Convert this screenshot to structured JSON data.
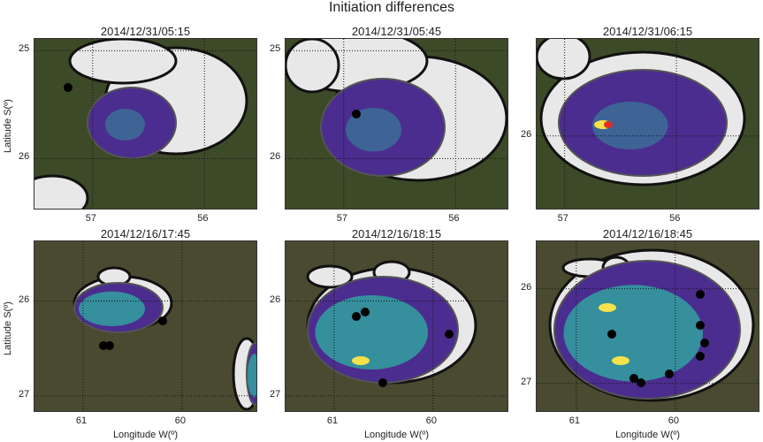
{
  "title": "Initiation differences",
  "x_axis_label": "Longitude W(º)",
  "y_axis_label": "Latitude S(º)",
  "colors": {
    "land": "#3d4a28",
    "cloud": "#e8e8e8",
    "low": "#4b2d8f",
    "mid": "#2fa8a0",
    "high": "#f5e14a",
    "peak": "#e0301e",
    "marker": "#000000"
  },
  "panels": [
    {
      "title": "2014/12/31/05:15",
      "lon_range": [
        57.52,
        55.52
      ],
      "lat_range": [
        24.89,
        26.48
      ],
      "xticks": [
        "57",
        "56"
      ],
      "xtick_values": [
        57,
        56
      ],
      "yticks": [
        "25",
        "26"
      ],
      "ytick_values": [
        25,
        26
      ]
    },
    {
      "title": "2014/12/31/05:45",
      "lon_range": [
        57.52,
        55.52
      ],
      "lat_range": [
        24.89,
        26.48
      ],
      "xticks": [
        "57",
        "56"
      ],
      "xtick_values": [
        57,
        56
      ],
      "yticks": [
        "25",
        "26"
      ],
      "ytick_values": [
        25,
        26
      ]
    },
    {
      "title": "2014/12/31/06:15",
      "lon_range": [
        57.25,
        55.25
      ],
      "lat_range": [
        25.1,
        26.69
      ],
      "xticks": [
        "57",
        "56"
      ],
      "xtick_values": [
        57,
        56
      ],
      "yticks": [
        "26"
      ],
      "ytick_values": [
        26
      ]
    },
    {
      "title": "2014/12/16/17:45",
      "lon_range": [
        61.49,
        59.23
      ],
      "lat_range": [
        25.37,
        27.18
      ],
      "xticks": [
        "61",
        "60"
      ],
      "xtick_values": [
        61,
        60
      ],
      "yticks": [
        "26",
        "27"
      ],
      "ytick_values": [
        26,
        27
      ]
    },
    {
      "title": "2014/12/16/18:15",
      "lon_range": [
        61.49,
        59.23
      ],
      "lat_range": [
        25.37,
        27.18
      ],
      "xticks": [
        "61",
        "60"
      ],
      "xtick_values": [
        61,
        60
      ],
      "yticks": [
        "26",
        "27"
      ],
      "ytick_values": [
        26,
        27
      ]
    },
    {
      "title": "2014/12/16/18:45",
      "lon_range": [
        61.4,
        59.14
      ],
      "lat_range": [
        25.5,
        27.31
      ],
      "xticks": [
        "61",
        "60"
      ],
      "xtick_values": [
        61,
        60
      ],
      "yticks": [
        "26",
        "27"
      ],
      "ytick_values": [
        26,
        27
      ]
    }
  ]
}
